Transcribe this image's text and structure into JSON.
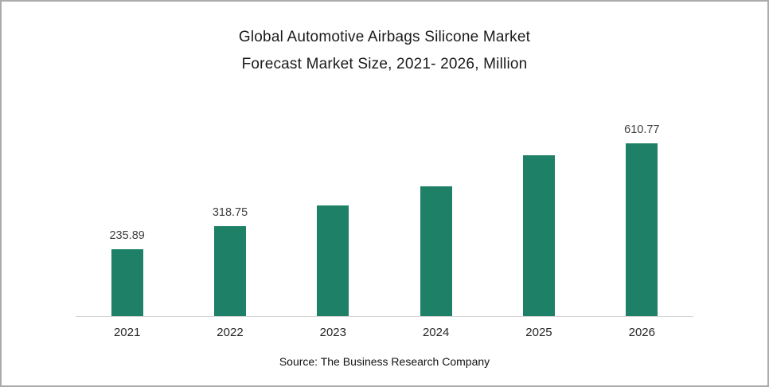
{
  "header": {
    "title_line1": "Global Automotive Airbags Silicone Market",
    "title_line2": "Forecast Market Size, 2021- 2026, Million"
  },
  "footer": {
    "source": "Source: The Business Research Company"
  },
  "chart_data": {
    "type": "bar",
    "title": "Global Automotive Airbags Silicone Market Forecast Market Size, 2021- 2026, Million",
    "categories": [
      "2021",
      "2022",
      "2023",
      "2024",
      "2025",
      "2026"
    ],
    "values": [
      235.89,
      318.75,
      390,
      458,
      568,
      610.77
    ],
    "data_labels": [
      "235.89",
      "318.75",
      "",
      "",
      "",
      "610.77"
    ],
    "xlabel": "",
    "ylabel": "",
    "ylim": [
      0,
      650
    ],
    "grid": false,
    "legend": false,
    "bar_color": "#1F8068",
    "axis_line_color": "#d6d6d6",
    "source": "Source: The Business Research Company"
  }
}
